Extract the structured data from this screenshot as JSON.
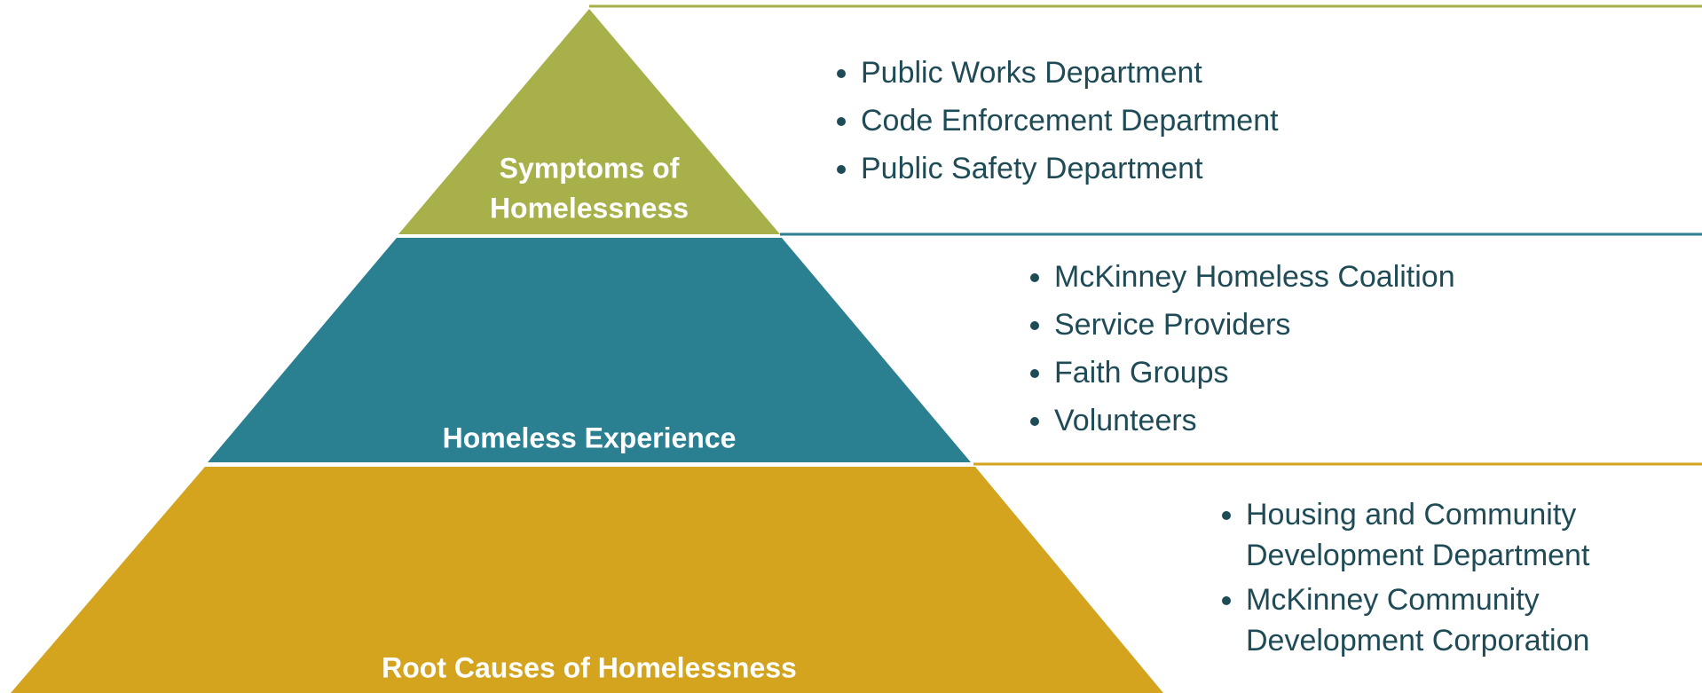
{
  "tiers": [
    {
      "label_lines": [
        "Symptoms of",
        "Homelessness"
      ],
      "items": [
        "Public Works Department",
        "Code Enforcement Department",
        "Public Safety Department"
      ]
    },
    {
      "label_lines": [
        "Homeless Experience"
      ],
      "items": [
        "McKinney Homeless Coalition",
        "Service Providers",
        "Faith Groups",
        "Volunteers"
      ]
    },
    {
      "label_lines": [
        "Root Causes of Homelessness"
      ],
      "items": [
        "Housing and Community Development Department",
        "McKinney Community Development Corporation"
      ]
    }
  ]
}
